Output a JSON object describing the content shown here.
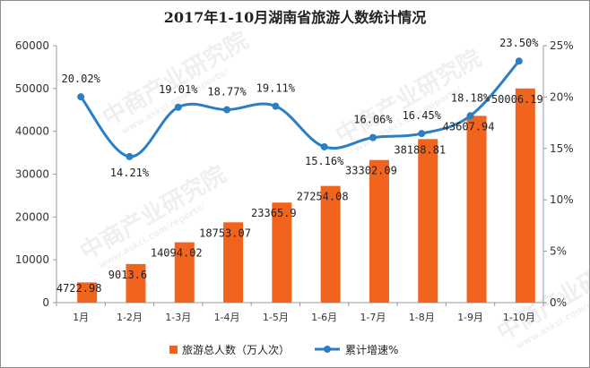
{
  "chart_data": {
    "type": "bar+line",
    "title": "2017年1-10月湖南省旅游人数统计情况",
    "categories": [
      "1月",
      "1-2月",
      "1-3月",
      "1-4月",
      "1-5月",
      "1-6月",
      "1-7月",
      "1-8月",
      "1-9月",
      "1-10月"
    ],
    "series": [
      {
        "name": "旅游总人数（万人次）",
        "type": "bar",
        "axis": "left",
        "values": [
          4722.98,
          9013.6,
          14094.02,
          18753.07,
          23365.9,
          27254.08,
          33302.09,
          38188.81,
          43607.94,
          50006.19
        ],
        "labels": [
          "4722.98",
          "9013.6",
          "14094.02",
          "18753.07",
          "23365.9",
          "27254.08",
          "33302.09",
          "38188.81",
          "43607.94",
          "50006.19"
        ],
        "color": "#f0641e"
      },
      {
        "name": "累计增速%",
        "type": "line",
        "axis": "right",
        "values": [
          20.02,
          14.21,
          19.01,
          18.77,
          19.11,
          15.16,
          16.06,
          16.45,
          18.18,
          23.5
        ],
        "labels": [
          "20.02%",
          "14.21%",
          "19.01%",
          "18.77%",
          "19.11%",
          "15.16%",
          "16.06%",
          "16.45%",
          "18.18%",
          "23.50%"
        ],
        "color": "#2a7fc4"
      }
    ],
    "y_left": {
      "min": 0,
      "max": 60000,
      "ticks": [
        0,
        10000,
        20000,
        30000,
        40000,
        50000,
        60000
      ]
    },
    "y_right": {
      "min": 0,
      "max": 25,
      "ticks": [
        "0%",
        "5%",
        "10%",
        "15%",
        "20%",
        "25%"
      ]
    },
    "grid": false,
    "legend_position": "bottom",
    "watermark": [
      "中商产业研究院",
      "www.askci.com/reports/"
    ]
  }
}
